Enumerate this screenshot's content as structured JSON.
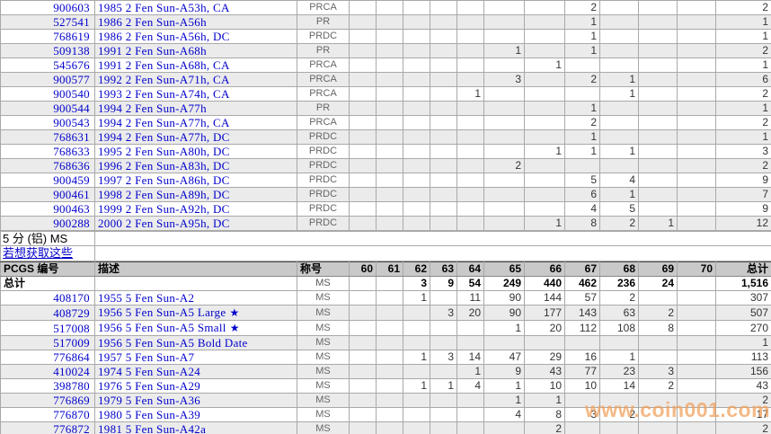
{
  "icons": {
    "star": "★"
  },
  "watermark": "www.coin001.com",
  "grade_keys": [
    "60",
    "61",
    "62",
    "63",
    "64",
    "65",
    "66",
    "67",
    "68",
    "69",
    "70"
  ],
  "top_table": {
    "rows": [
      {
        "pcgs": "900603",
        "desc": "1985 2 Fen Sun-A53h, CA",
        "desig": "PRCA",
        "grades": {
          "67": "2"
        },
        "total": "2"
      },
      {
        "pcgs": "527541",
        "desc": "1986 2 Fen Sun-A56h",
        "desig": "PR",
        "grades": {
          "67": "1"
        },
        "total": "1"
      },
      {
        "pcgs": "768619",
        "desc": "1986 2 Fen Sun-A56h, DC",
        "desig": "PRDC",
        "grades": {
          "67": "1"
        },
        "total": "1"
      },
      {
        "pcgs": "509138",
        "desc": "1991 2 Fen Sun-A68h",
        "desig": "PR",
        "grades": {
          "65": "1",
          "67": "1"
        },
        "total": "2"
      },
      {
        "pcgs": "545676",
        "desc": "1991 2 Fen Sun-A68h, CA",
        "desig": "PRCA",
        "grades": {
          "66": "1"
        },
        "total": "1"
      },
      {
        "pcgs": "900577",
        "desc": "1992 2 Fen Sun-A71h, CA",
        "desig": "PRCA",
        "grades": {
          "65": "3",
          "67": "2",
          "68": "1"
        },
        "total": "6"
      },
      {
        "pcgs": "900540",
        "desc": "1993 2 Fen Sun-A74h, CA",
        "desig": "PRCA",
        "grades": {
          "64": "1",
          "68": "1"
        },
        "total": "2"
      },
      {
        "pcgs": "900544",
        "desc": "1994 2 Fen Sun-A77h",
        "desig": "PR",
        "grades": {
          "67": "1"
        },
        "total": "1"
      },
      {
        "pcgs": "900543",
        "desc": "1994 2 Fen Sun-A77h, CA",
        "desig": "PRCA",
        "grades": {
          "67": "2"
        },
        "total": "2"
      },
      {
        "pcgs": "768631",
        "desc": "1994 2 Fen Sun-A77h, DC",
        "desig": "PRDC",
        "grades": {
          "67": "1"
        },
        "total": "1"
      },
      {
        "pcgs": "768633",
        "desc": "1995 2 Fen Sun-A80h, DC",
        "desig": "PRDC",
        "grades": {
          "66": "1",
          "67": "1",
          "68": "1"
        },
        "total": "3"
      },
      {
        "pcgs": "768636",
        "desc": "1996 2 Fen Sun-A83h, DC",
        "desig": "PRDC",
        "grades": {
          "65": "2"
        },
        "total": "2"
      },
      {
        "pcgs": "900459",
        "desc": "1997 2 Fen Sun-A86h, DC",
        "desig": "PRDC",
        "grades": {
          "67": "5",
          "68": "4"
        },
        "total": "9"
      },
      {
        "pcgs": "900461",
        "desc": "1998 2 Fen Sun-A89h, DC",
        "desig": "PRDC",
        "grades": {
          "67": "6",
          "68": "1"
        },
        "total": "7"
      },
      {
        "pcgs": "900463",
        "desc": "1999 2 Fen Sun-A92h, DC",
        "desig": "PRDC",
        "grades": {
          "67": "4",
          "68": "5"
        },
        "total": "9"
      },
      {
        "pcgs": "900288",
        "desc": "2000 2 Fen Sun-A95h, DC",
        "desig": "PRDC",
        "grades": {
          "66": "1",
          "67": "8",
          "68": "2",
          "69": "1"
        },
        "total": "12"
      }
    ]
  },
  "section": {
    "title": "5 分 (铝) MS",
    "link": "若想获取这些"
  },
  "bottom_table": {
    "headers": {
      "pcgs": "PCGS 编号",
      "desc": "描述",
      "desig": "称号",
      "grades": [
        "60",
        "61",
        "62",
        "63",
        "64",
        "65",
        "66",
        "67",
        "68",
        "69",
        "70"
      ],
      "total": "总计"
    },
    "totals": {
      "pcgs": "总计",
      "desig": "MS",
      "grades": {
        "62": "3",
        "63": "9",
        "64": "54",
        "65": "249",
        "66": "440",
        "67": "462",
        "68": "236",
        "69": "24"
      },
      "total": "1,516"
    },
    "rows": [
      {
        "pcgs": "408170",
        "desc": "1955 5 Fen Sun-A2",
        "desig": "MS",
        "grades": {
          "62": "1",
          "64": "11",
          "65": "90",
          "66": "144",
          "67": "57",
          "68": "2"
        },
        "total": "307"
      },
      {
        "pcgs": "408729",
        "desc": "1956 5 Fen Sun-A5 Large",
        "star": true,
        "desig": "MS",
        "grades": {
          "63": "3",
          "64": "20",
          "65": "90",
          "66": "177",
          "67": "143",
          "68": "63",
          "69": "2"
        },
        "total": "507"
      },
      {
        "pcgs": "517008",
        "desc": "1956 5 Fen Sun-A5 Small",
        "star": true,
        "desig": "MS",
        "grades": {
          "65": "1",
          "66": "20",
          "67": "112",
          "68": "108",
          "69": "8"
        },
        "total": "270"
      },
      {
        "pcgs": "517009",
        "desc": "1956 5 Fen Sun-A5 Bold Date",
        "desig": "MS",
        "grades": {},
        "total": "1"
      },
      {
        "pcgs": "776864",
        "desc": "1957 5 Fen Sun-A7",
        "desig": "MS",
        "grades": {
          "62": "1",
          "63": "3",
          "64": "14",
          "65": "47",
          "66": "29",
          "67": "16",
          "68": "1"
        },
        "total": "113"
      },
      {
        "pcgs": "410024",
        "desc": "1974 5 Fen Sun-A24",
        "desig": "MS",
        "grades": {
          "64": "1",
          "65": "9",
          "66": "43",
          "67": "77",
          "68": "23",
          "69": "3"
        },
        "total": "156"
      },
      {
        "pcgs": "398780",
        "desc": "1976 5 Fen Sun-A29",
        "desig": "MS",
        "grades": {
          "62": "1",
          "63": "1",
          "64": "4",
          "65": "1",
          "66": "10",
          "67": "10",
          "68": "14",
          "69": "2"
        },
        "total": "43"
      },
      {
        "pcgs": "776869",
        "desc": "1979 5 Fen Sun-A36",
        "desig": "MS",
        "grades": {
          "65": "1",
          "66": "1"
        },
        "total": "2"
      },
      {
        "pcgs": "776870",
        "desc": "1980 5 Fen Sun-A39",
        "desig": "MS",
        "grades": {
          "65": "4",
          "66": "8",
          "67": "3",
          "68": "2"
        },
        "total": "17"
      },
      {
        "pcgs": "776872",
        "desc": "1981 5 Fen Sun-A42a",
        "desig": "MS",
        "grades": {
          "66": "2"
        },
        "total": "2"
      }
    ]
  }
}
